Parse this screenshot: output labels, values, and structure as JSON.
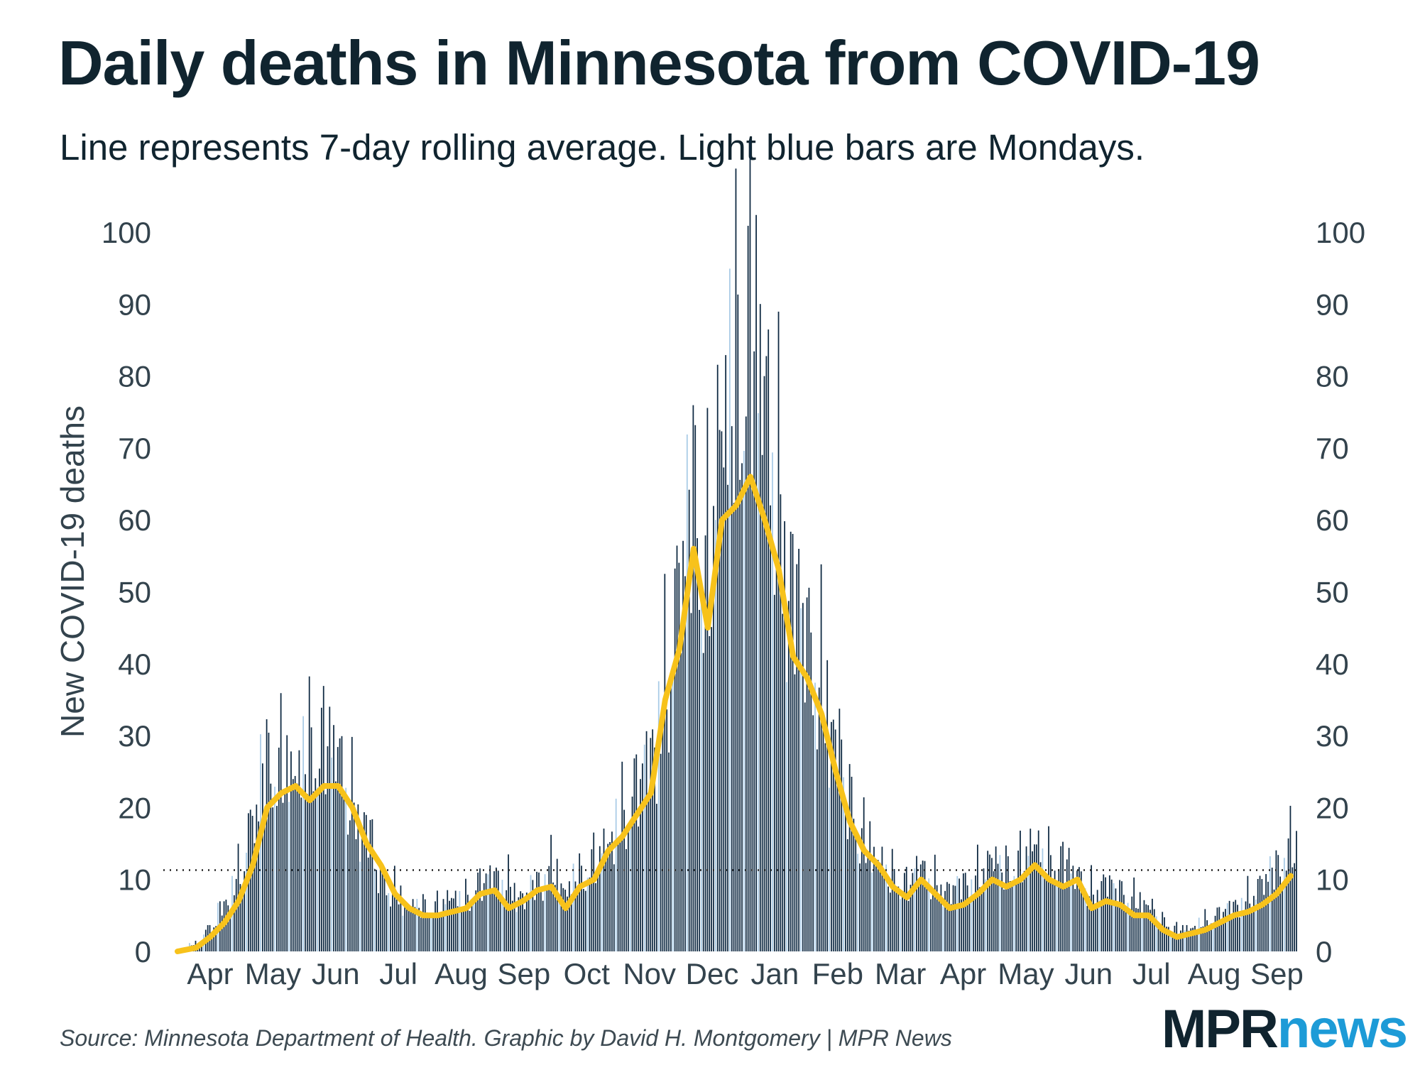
{
  "chart_data": {
    "type": "bar",
    "title": "Daily deaths in Minnesota from COVID-19",
    "subtitle": "Line represents 7-day rolling average. Light blue bars are Mondays.",
    "ylabel": "New COVID-19 deaths",
    "xlabel": "",
    "ylim": [
      0,
      100
    ],
    "y_ticks": [
      "0",
      "10",
      "20",
      "30",
      "40",
      "50",
      "60",
      "70",
      "80",
      "90",
      "100"
    ],
    "reference_line": 11.3,
    "month_labels": [
      "Apr",
      "May",
      "Jun",
      "Jul",
      "Aug",
      "Sep",
      "Oct",
      "Nov",
      "Dec",
      "Jan",
      "Feb",
      "Mar",
      "Apr",
      "May",
      "Jun",
      "Jul",
      "Aug",
      "Sep"
    ],
    "weekly_values": [
      0,
      1,
      3,
      6,
      10,
      17,
      25,
      25,
      23,
      27,
      28,
      26,
      20,
      16,
      10,
      8,
      6,
      6,
      6,
      7,
      7,
      9,
      10,
      9,
      7,
      9,
      11,
      8,
      10,
      12,
      14,
      18,
      22,
      26,
      35,
      48,
      60,
      52,
      68,
      78,
      84,
      74,
      60,
      48,
      42,
      36,
      28,
      20,
      15,
      12,
      10,
      9,
      11,
      9,
      8,
      9,
      10,
      12,
      11,
      12,
      14,
      12,
      12,
      10,
      8,
      9,
      8,
      7,
      6,
      4,
      3,
      3,
      4,
      5,
      6,
      7,
      9,
      11,
      14
    ],
    "series": [
      {
        "name": "7-day rolling average",
        "values": [
          0,
          0.5,
          2,
          4,
          7,
          12,
          20,
          22,
          23,
          21,
          23,
          23,
          20,
          15,
          12,
          8,
          6,
          5,
          5,
          5.5,
          6,
          8,
          8.5,
          6,
          7,
          8.5,
          9,
          6,
          9,
          10,
          14,
          16,
          19,
          22,
          35,
          42,
          56,
          45,
          60,
          62,
          66,
          60,
          53,
          41,
          38,
          33,
          25,
          18,
          14,
          12,
          9,
          7.5,
          10,
          8,
          6,
          6.5,
          8,
          10,
          9,
          10,
          12,
          10,
          9,
          10,
          6,
          7,
          6.5,
          5,
          5,
          3,
          2,
          2.5,
          3,
          4,
          5,
          5.5,
          6.5,
          8,
          10.5
        ]
      }
    ]
  },
  "source": "Source: Minnesota Department of Health. Graphic by David H. Montgomery | MPR News",
  "brand": {
    "mpr": "MPR",
    "news": "news"
  },
  "colors": {
    "bar": "#0e2942",
    "monday": "#a9cbe6",
    "line": "#f7c21b",
    "text": "#33434d"
  }
}
